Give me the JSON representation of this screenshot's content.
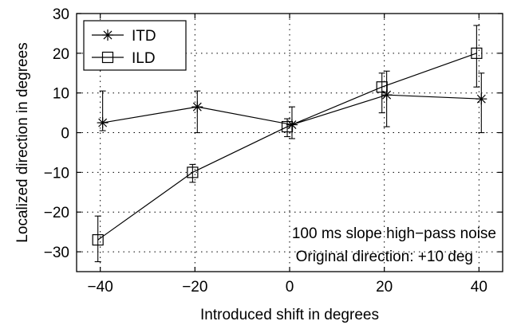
{
  "chart_data": {
    "type": "line",
    "title": "",
    "xlabel": "Introduced shift in degrees",
    "ylabel": "Localized direction in degrees",
    "xlim": [
      -45,
      45
    ],
    "ylim": [
      -35,
      30
    ],
    "xticks": [
      -40,
      -20,
      0,
      20,
      40
    ],
    "yticks": [
      -30,
      -20,
      -10,
      0,
      10,
      20,
      30
    ],
    "xtick_labels": [
      "−40",
      "−20",
      "0",
      "20",
      "40"
    ],
    "ytick_labels": [
      "−30",
      "−20",
      "−10",
      "0",
      "10",
      "20",
      "30"
    ],
    "grid": true,
    "legend_position": "top-left",
    "series": [
      {
        "name": "ITD",
        "marker": "asterisk",
        "color": "#000000",
        "x": [
          -39.5,
          -19.5,
          0.5,
          20.5,
          40.5
        ],
        "y": [
          2.5,
          6.5,
          2.0,
          9.5,
          8.5
        ],
        "err_low": [
          0.5,
          0.0,
          -1.5,
          1.5,
          0.0
        ],
        "err_high": [
          10.5,
          10.5,
          6.5,
          15.5,
          15.0
        ]
      },
      {
        "name": "ILD",
        "marker": "square",
        "color": "#000000",
        "x": [
          -40.5,
          -20.5,
          -0.5,
          19.5,
          39.5
        ],
        "y": [
          -27.0,
          -10.0,
          1.5,
          11.5,
          20.0
        ],
        "err_low": [
          -32.5,
          -12.5,
          -1.0,
          5.0,
          11.5
        ],
        "err_high": [
          -21.0,
          -8.0,
          3.5,
          15.0,
          27.0
        ]
      }
    ],
    "annotations": [
      "100 ms slope high−pass noise",
      "Original direction: +10 deg"
    ]
  }
}
